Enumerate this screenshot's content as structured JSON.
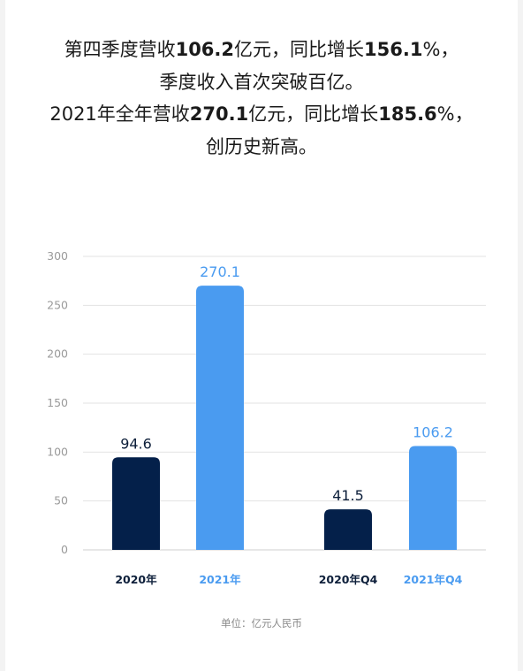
{
  "headline": {
    "line1": {
      "a": "第四季度营收",
      "b": "106.2",
      "c": "亿元，同比增长",
      "d": "156.1",
      "e": "%，"
    },
    "line2": "季度收入首次突破百亿。",
    "line3": {
      "a": "2021年全年营收",
      "b": "270.1",
      "c": "亿元，同比增长",
      "d": "185.6",
      "e": "%，"
    },
    "line4": "创历史新高。"
  },
  "chart_data": {
    "type": "bar",
    "categories": [
      "2020年",
      "2021年",
      "2020年Q4",
      "2021年Q4"
    ],
    "values": [
      94.6,
      270.1,
      41.5,
      106.2
    ],
    "value_labels": [
      "94.6",
      "270.1",
      "41.5",
      "106.2"
    ],
    "bar_colors": [
      "#04204a",
      "#4a9bf0",
      "#04204a",
      "#4a9bf0"
    ],
    "ylim": [
      0,
      300
    ],
    "yticks": [
      0,
      50,
      100,
      150,
      200,
      250,
      300
    ],
    "grid": true,
    "unit_note": "单位：亿元人民币"
  },
  "colors": {
    "dark": "#04204a",
    "light": "#4a9bf0",
    "grid": "#e3e3e3",
    "axis_text": "#9a9a9a"
  }
}
